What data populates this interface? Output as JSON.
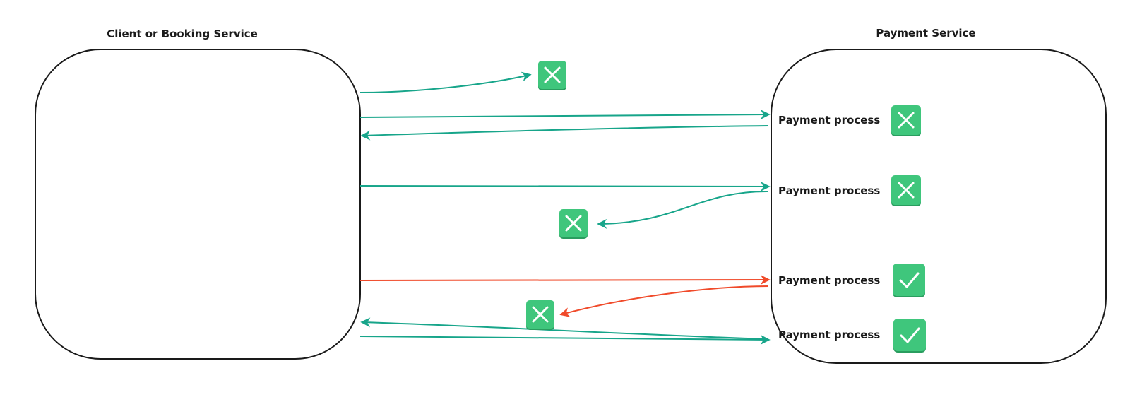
{
  "client": {
    "title": "Client or Booking Service"
  },
  "payment": {
    "title": "Payment Service",
    "processes": [
      {
        "label": "Payment process",
        "status_icon": "cross-icon"
      },
      {
        "label": "Payment process",
        "status_icon": "cross-icon"
      },
      {
        "label": "Payment process",
        "status_icon": "check-icon"
      },
      {
        "label": "Payment process",
        "status_icon": "check-icon"
      }
    ]
  },
  "colors": {
    "success_flow": "#17a58a",
    "failure_flow": "#f04a2a",
    "badge": "#3fc67c"
  },
  "icons": {
    "failed_request": "cross-icon",
    "failed_response": "cross-icon"
  }
}
